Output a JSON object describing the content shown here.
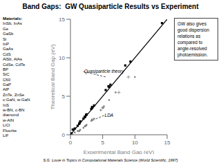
{
  "chart_data": {
    "type": "scatter",
    "title": "Band Gaps:  GW Quasiparticle Results vs Experiment",
    "xlabel": "Experimental Band Gap (eV)",
    "ylabel": "Theoretical Band Gap (eV)",
    "xlim": [
      0,
      15
    ],
    "ylim": [
      0,
      15
    ],
    "xticks": [
      0,
      5,
      10,
      15
    ],
    "yticks": [
      0,
      5,
      10,
      15
    ],
    "grid": false,
    "series": [
      {
        "type": "scatter",
        "marker": "square",
        "color": "black",
        "x": [
          0.17,
          0.36,
          0.67,
          1.12,
          1.35,
          1.42,
          1.52,
          2.42,
          2.23,
          2.5,
          2.02,
          3.23,
          3.35,
          2.27,
          2.45,
          2.26,
          3.39,
          3.67,
          6.2,
          6.0,
          5.47,
          5.9,
          8.5,
          9.3,
          14.2
        ],
        "values": [
          0.17,
          0.68,
          0.81,
          1.17,
          1.42,
          1.52,
          1.74,
          2.55,
          2.35,
          2.65,
          2.1,
          3.35,
          3.6,
          2.35,
          2.58,
          2.31,
          3.5,
          3.8,
          6.5,
          6.2,
          5.8,
          6.3,
          9.0,
          9.5,
          14.5
        ]
      },
      {
        "type": "scatter",
        "marker": "circle",
        "color": "gray",
        "x": [
          0.17,
          0.36,
          0.67,
          1.12,
          1.35,
          1.42,
          1.52,
          2.42,
          2.23,
          2.5,
          2.02,
          3.23,
          3.35,
          2.27,
          2.45,
          2.26,
          3.39,
          3.67,
          5.0,
          5.2,
          4.7,
          5.1,
          6.0,
          7.0,
          10.0
        ],
        "values": [
          0.0,
          0.0,
          0.3,
          0.5,
          0.45,
          0.55,
          0.65,
          1.2,
          1.1,
          1.3,
          0.9,
          1.8,
          2.0,
          1.1,
          1.2,
          1.1,
          1.9,
          2.1,
          3.5,
          3.7,
          3.2,
          3.5,
          4.5,
          5.5,
          7.5
        ]
      },
      {
        "type": "scatter",
        "marker": "plus",
        "color": "gray",
        "x": [
          5.0,
          7.5,
          9.0
        ],
        "values": [
          3.5,
          5.5,
          7.5
        ]
      },
      {
        "type": "line",
        "line_style": "solid",
        "color": "black",
        "x": [
          0,
          15
        ],
        "values": [
          0,
          15
        ]
      }
    ],
    "annotations": [
      {
        "text": "Quasiparticle theory",
        "x": 2.0,
        "y": 8.2,
        "point": [
          5.5,
          7.5
        ]
      },
      {
        "text": "LDA",
        "x": 5.2,
        "y": 2.5,
        "point": [
          3.2,
          1.8
        ]
      }
    ],
    "materials": [
      "Materials:",
      "InSb, InAs",
      "Ge",
      "GaSb",
      "Si",
      "InP",
      "GaAs",
      "CdS",
      "AlSb, AlAs",
      "CdSe, CdTe",
      "BP",
      "SiC",
      "C60",
      "GaP",
      "AlP",
      "ZnTe, ZnSe",
      "c-GaN, w-GaN",
      "InS",
      "w-BN, c-BN",
      "diamond",
      "w-AlN",
      "LiCl",
      "Fluorite",
      "LiF"
    ],
    "note": "GW also gives\ngood dispersion\nrelations as\ncompared to\nangle-resolved\nphotoemission.",
    "footnote": "S.G. Louie in Topics in Computational Materials Science (World Scientific, 1997)"
  }
}
